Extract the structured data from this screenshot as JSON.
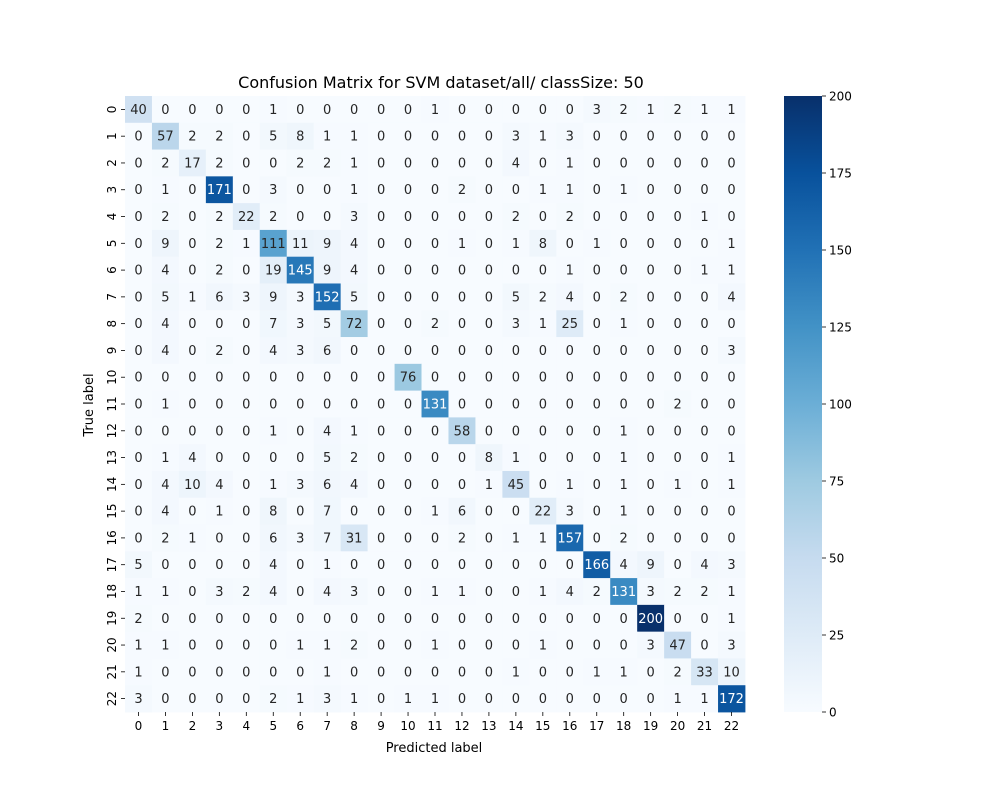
{
  "chart_data": {
    "type": "heatmap",
    "title": "Confusion Matrix for SVM dataset/all/ classSize: 50",
    "xlabel": "Predicted label",
    "ylabel": "True label",
    "x_categories": [
      "0",
      "1",
      "2",
      "3",
      "4",
      "5",
      "6",
      "7",
      "8",
      "9",
      "10",
      "11",
      "12",
      "13",
      "14",
      "15",
      "16",
      "17",
      "18",
      "19",
      "20",
      "21",
      "22"
    ],
    "y_categories": [
      "0",
      "1",
      "2",
      "3",
      "4",
      "5",
      "6",
      "7",
      "8",
      "9",
      "10",
      "11",
      "12",
      "13",
      "14",
      "15",
      "16",
      "17",
      "18",
      "19",
      "20",
      "21",
      "22"
    ],
    "matrix": [
      [
        40,
        0,
        0,
        0,
        0,
        1,
        0,
        0,
        0,
        0,
        0,
        1,
        0,
        0,
        0,
        0,
        0,
        3,
        2,
        1,
        2,
        1,
        1
      ],
      [
        0,
        57,
        2,
        2,
        0,
        5,
        8,
        1,
        1,
        0,
        0,
        0,
        0,
        0,
        3,
        1,
        3,
        0,
        0,
        0,
        0,
        0,
        0
      ],
      [
        0,
        2,
        17,
        2,
        0,
        0,
        2,
        2,
        1,
        0,
        0,
        0,
        0,
        0,
        4,
        0,
        1,
        0,
        0,
        0,
        0,
        0,
        0
      ],
      [
        0,
        1,
        0,
        171,
        0,
        3,
        0,
        0,
        1,
        0,
        0,
        0,
        2,
        0,
        0,
        1,
        1,
        0,
        1,
        0,
        0,
        0,
        0
      ],
      [
        0,
        2,
        0,
        2,
        22,
        2,
        0,
        0,
        3,
        0,
        0,
        0,
        0,
        0,
        2,
        0,
        2,
        0,
        0,
        0,
        0,
        1,
        0
      ],
      [
        0,
        9,
        0,
        2,
        1,
        111,
        11,
        9,
        4,
        0,
        0,
        0,
        1,
        0,
        1,
        8,
        0,
        1,
        0,
        0,
        0,
        0,
        1
      ],
      [
        0,
        4,
        0,
        2,
        0,
        19,
        145,
        9,
        4,
        0,
        0,
        0,
        0,
        0,
        0,
        0,
        1,
        0,
        0,
        0,
        0,
        1,
        1
      ],
      [
        0,
        5,
        1,
        6,
        3,
        9,
        3,
        152,
        5,
        0,
        0,
        0,
        0,
        0,
        5,
        2,
        4,
        0,
        2,
        0,
        0,
        0,
        4
      ],
      [
        0,
        4,
        0,
        0,
        0,
        7,
        3,
        5,
        72,
        0,
        0,
        2,
        0,
        0,
        3,
        1,
        25,
        0,
        1,
        0,
        0,
        0,
        0
      ],
      [
        0,
        4,
        0,
        2,
        0,
        4,
        3,
        6,
        0,
        0,
        0,
        0,
        0,
        0,
        0,
        0,
        0,
        0,
        0,
        0,
        0,
        0,
        3
      ],
      [
        0,
        0,
        0,
        0,
        0,
        0,
        0,
        0,
        0,
        0,
        76,
        0,
        0,
        0,
        0,
        0,
        0,
        0,
        0,
        0,
        0,
        0,
        0
      ],
      [
        0,
        1,
        0,
        0,
        0,
        0,
        0,
        0,
        0,
        0,
        0,
        131,
        0,
        0,
        0,
        0,
        0,
        0,
        0,
        0,
        2,
        0,
        0
      ],
      [
        0,
        0,
        0,
        0,
        0,
        1,
        0,
        4,
        1,
        0,
        0,
        0,
        58,
        0,
        0,
        0,
        0,
        0,
        1,
        0,
        0,
        0,
        0
      ],
      [
        0,
        1,
        4,
        0,
        0,
        0,
        0,
        5,
        2,
        0,
        0,
        0,
        0,
        8,
        1,
        0,
        0,
        0,
        1,
        0,
        0,
        0,
        1
      ],
      [
        0,
        4,
        10,
        4,
        0,
        1,
        3,
        6,
        4,
        0,
        0,
        0,
        0,
        1,
        45,
        0,
        1,
        0,
        1,
        0,
        1,
        0,
        1
      ],
      [
        0,
        4,
        0,
        1,
        0,
        8,
        0,
        7,
        0,
        0,
        0,
        1,
        6,
        0,
        0,
        22,
        3,
        0,
        1,
        0,
        0,
        0,
        0
      ],
      [
        0,
        2,
        1,
        0,
        0,
        6,
        3,
        7,
        31,
        0,
        0,
        0,
        2,
        0,
        1,
        1,
        157,
        0,
        2,
        0,
        0,
        0,
        0
      ],
      [
        5,
        0,
        0,
        0,
        0,
        4,
        0,
        1,
        0,
        0,
        0,
        0,
        0,
        0,
        0,
        0,
        0,
        166,
        4,
        9,
        0,
        4,
        3
      ],
      [
        1,
        1,
        0,
        3,
        2,
        4,
        0,
        4,
        3,
        0,
        0,
        1,
        1,
        0,
        0,
        1,
        4,
        2,
        131,
        3,
        2,
        2,
        1
      ],
      [
        2,
        0,
        0,
        0,
        0,
        0,
        0,
        0,
        0,
        0,
        0,
        0,
        0,
        0,
        0,
        0,
        0,
        0,
        0,
        200,
        0,
        0,
        1
      ],
      [
        1,
        1,
        0,
        0,
        0,
        0,
        1,
        1,
        2,
        0,
        0,
        1,
        0,
        0,
        0,
        1,
        0,
        0,
        0,
        3,
        47,
        0,
        3
      ],
      [
        1,
        0,
        0,
        0,
        0,
        0,
        0,
        1,
        0,
        0,
        0,
        0,
        0,
        0,
        1,
        0,
        0,
        1,
        1,
        0,
        2,
        33,
        10
      ],
      [
        3,
        0,
        0,
        0,
        0,
        2,
        1,
        3,
        1,
        0,
        1,
        1,
        0,
        0,
        0,
        0,
        0,
        0,
        0,
        0,
        1,
        1,
        172
      ]
    ],
    "colorbar": {
      "range": [
        0,
        200
      ],
      "ticks": [
        0,
        25,
        50,
        75,
        100,
        125,
        150,
        175,
        200
      ],
      "colormap": "Blues"
    },
    "grid": false
  }
}
